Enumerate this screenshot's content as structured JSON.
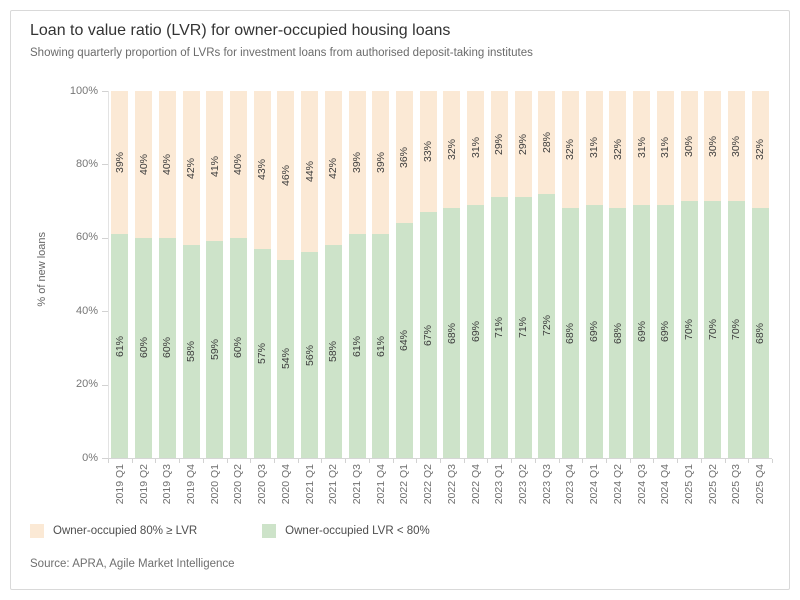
{
  "page": {
    "title": "Loan to value ratio (LVR) for owner-occupied housing loans",
    "subtitle": "Showing quarterly proportion of LVRs for investment loans from authorised deposit-taking institutes",
    "source": "Source: APRA, Agile Market Intelligence"
  },
  "colors": {
    "high_lvr": "#fbe9d5",
    "low_lvr": "#cde3c9",
    "frame_border": "#d9d9d9",
    "bar_label_text": "#3d3d3d",
    "axis_text": "#767676"
  },
  "legend": [
    {
      "label": "Owner-occupied 80% ≥ LVR",
      "color": "#fbe9d5"
    },
    {
      "label": "Owner-occupied LVR < 80%",
      "color": "#cde3c9"
    }
  ],
  "chart_data": {
    "type": "bar",
    "stacked": true,
    "title": "Loan to value ratio (LVR) for owner-occupied housing loans",
    "xlabel": "",
    "ylabel": "% of new loans",
    "ylim": [
      0,
      100
    ],
    "ytick_labels": [
      "0%",
      "20%",
      "40%",
      "60%",
      "80%",
      "100%"
    ],
    "grid": false,
    "legend_position": "bottom",
    "categories": [
      "2019 Q1",
      "2019 Q2",
      "2019 Q3",
      "2019 Q4",
      "2020 Q1",
      "2020 Q2",
      "2020 Q3",
      "2020 Q4",
      "2021 Q1",
      "2021 Q2",
      "2021 Q3",
      "2021 Q4",
      "2022 Q1",
      "2022 Q2",
      "2022 Q3",
      "2022 Q4",
      "2023 Q1",
      "2023 Q2",
      "2023 Q3",
      "2023 Q4",
      "2024 Q1",
      "2024 Q2",
      "2024 Q3",
      "2024 Q4",
      "2025 Q1",
      "2025 Q2",
      "2025 Q3",
      "2025 Q4"
    ],
    "series": [
      {
        "name": "Owner-occupied LVR < 80%",
        "color": "#cde3c9",
        "values": [
          61,
          60,
          60,
          58,
          59,
          60,
          57,
          54,
          56,
          58,
          61,
          61,
          64,
          67,
          68,
          69,
          71,
          71,
          72,
          68,
          69,
          68,
          69,
          69,
          70,
          70,
          70,
          68
        ]
      },
      {
        "name": "Owner-occupied 80% ≥ LVR",
        "color": "#fbe9d5",
        "values": [
          39,
          40,
          40,
          42,
          41,
          40,
          43,
          46,
          44,
          42,
          39,
          39,
          36,
          33,
          32,
          31,
          29,
          29,
          28,
          32,
          31,
          32,
          31,
          31,
          30,
          30,
          30,
          32
        ]
      }
    ],
    "value_label_format": "{v}%"
  }
}
